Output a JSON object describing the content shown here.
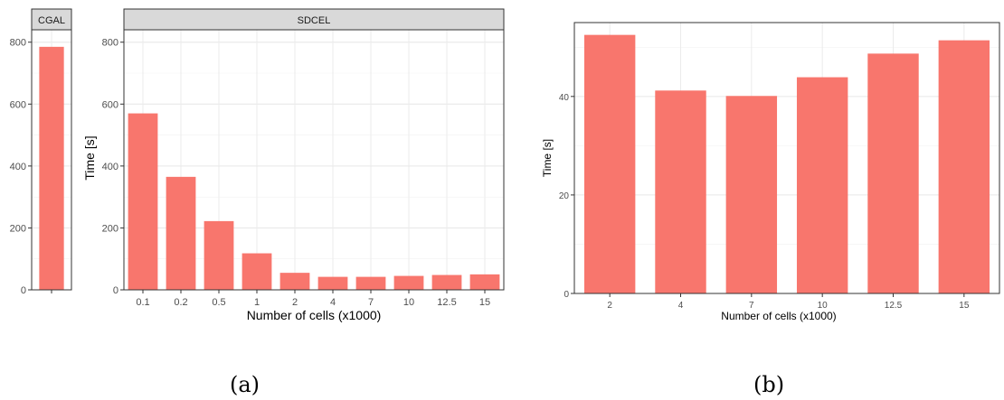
{
  "charts": {
    "a": {
      "caption": "(a)",
      "chart_data": [
        {
          "type": "bar",
          "facet": "CGAL",
          "categories": [
            ""
          ],
          "values": [
            785
          ],
          "ylabel": "",
          "xlabel": "",
          "yticks": [
            0,
            200,
            400,
            600,
            800
          ],
          "ylim": [
            0,
            840
          ],
          "grid": true,
          "bar_color": "#F8766D"
        },
        {
          "type": "bar",
          "facet": "SDCEL",
          "categories": [
            "0.1",
            "0.2",
            "0.5",
            "1",
            "2",
            "4",
            "7",
            "10",
            "12.5",
            "15"
          ],
          "values": [
            570,
            365,
            222,
            118,
            55,
            42,
            42,
            45,
            48,
            50
          ],
          "ylabel": "Time [s]",
          "xlabel": "Number of cells (x1000)",
          "yticks": [
            0,
            200,
            400,
            600,
            800
          ],
          "ylim": [
            0,
            840
          ],
          "grid": true,
          "bar_color": "#F8766D"
        }
      ]
    },
    "b": {
      "caption": "(b)",
      "chart_data": {
        "type": "bar",
        "categories": [
          "2",
          "4",
          "7",
          "10",
          "12.5",
          "15"
        ],
        "values": [
          52.5,
          41.2,
          40.1,
          43.9,
          48.7,
          51.4
        ],
        "ylabel": "Time [s]",
        "xlabel": "Number of cells (x1000)",
        "yticks": [
          0,
          20,
          40
        ],
        "ylim": [
          0,
          55
        ],
        "grid": true,
        "bar_color": "#F8766D"
      }
    }
  }
}
